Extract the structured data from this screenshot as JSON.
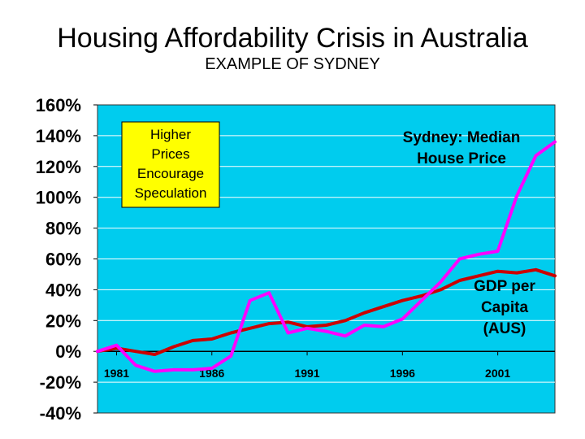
{
  "header": {
    "title": "Housing Affordability Crisis in Australia",
    "subtitle": "EXAMPLE OF SYDNEY"
  },
  "callout": {
    "lines": [
      "Higher",
      "Prices",
      "Encourage",
      "Speculation"
    ],
    "background": "#ffff00"
  },
  "colors": {
    "plot_background": "#00ccee",
    "house_price": "#ff00ff",
    "gdp": "#cc0000"
  },
  "chart_data": {
    "type": "line",
    "title": "Housing Affordability Crisis in Australia",
    "subtitle": "EXAMPLE OF SYDNEY",
    "xlabel": "",
    "ylabel": "",
    "xlim": [
      1980,
      2004
    ],
    "ylim": [
      -40,
      160
    ],
    "y_ticks": [
      160,
      140,
      120,
      100,
      80,
      60,
      40,
      20,
      0,
      -20,
      -40
    ],
    "y_tick_labels": [
      "160%",
      "140%",
      "120%",
      "100%",
      "80%",
      "60%",
      "40%",
      "20%",
      "0%",
      "-20%",
      "-40%"
    ],
    "x_ticks": [
      1981,
      1986,
      1991,
      1996,
      2001
    ],
    "x_tick_labels": [
      "1981",
      "1986",
      "1991",
      "1996",
      "2001"
    ],
    "grid": true,
    "series": [
      {
        "name": "Sydney: Median House Price",
        "label_lines": [
          "Sydney: Median",
          "House Price"
        ],
        "color": "#ff00ff",
        "x": [
          1980,
          1981,
          1982,
          1983,
          1984,
          1985,
          1986,
          1987,
          1988,
          1989,
          1990,
          1991,
          1992,
          1993,
          1994,
          1995,
          1996,
          1997,
          1998,
          1999,
          2000,
          2001,
          2002,
          2003,
          2004
        ],
        "values": [
          0,
          4,
          -9,
          -13,
          -12,
          -12,
          -11,
          -3,
          33,
          38,
          12,
          15,
          13,
          10,
          17,
          16,
          21,
          33,
          45,
          60,
          63,
          65,
          101,
          127,
          136
        ]
      },
      {
        "name": "GDP per Capita (AUS)",
        "label_lines": [
          "GDP per",
          "Capita",
          "(AUS)"
        ],
        "color": "#cc0000",
        "x": [
          1980,
          1981,
          1982,
          1983,
          1984,
          1985,
          1986,
          1987,
          1988,
          1989,
          1990,
          1991,
          1992,
          1993,
          1994,
          1995,
          1996,
          1997,
          1998,
          1999,
          2000,
          2001,
          2002,
          2003,
          2004
        ],
        "values": [
          0,
          2,
          0,
          -2,
          3,
          7,
          8,
          12,
          15,
          18,
          19,
          16,
          17,
          20,
          25,
          29,
          33,
          36,
          40,
          46,
          49,
          52,
          51,
          53,
          49
        ]
      }
    ]
  }
}
